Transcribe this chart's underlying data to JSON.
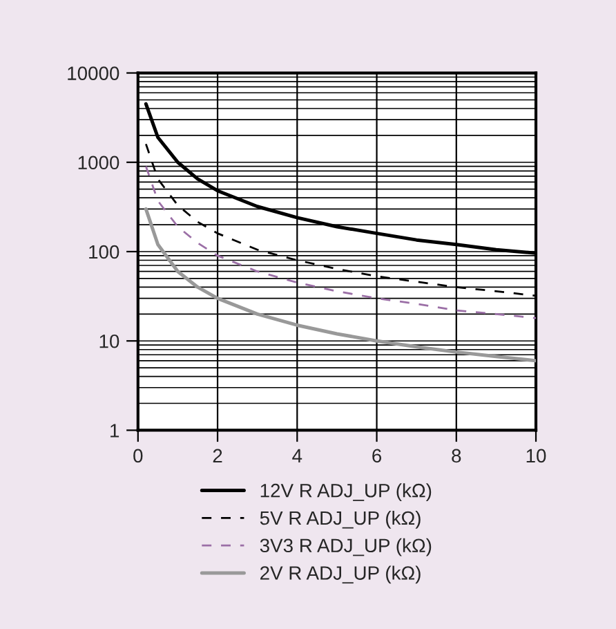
{
  "chart_data": {
    "type": "line",
    "log": "y",
    "xlim": [
      0,
      10
    ],
    "ylim": [
      1,
      10000
    ],
    "xticks": [
      0,
      2,
      4,
      6,
      8,
      10
    ],
    "yticks": [
      1,
      10,
      100,
      1000,
      10000
    ],
    "grid": true,
    "legend": "bottom",
    "x": [
      0.2,
      0.5,
      1,
      1.5,
      2,
      3,
      4,
      5,
      6,
      7,
      8,
      9,
      10
    ],
    "series": [
      {
        "name": "12V R ADJ_UP (kΩ)",
        "color": "#000000",
        "line_style": "solid",
        "values": [
          4500,
          1900,
          1000,
          650,
          480,
          320,
          240,
          190,
          160,
          135,
          120,
          105,
          96
        ]
      },
      {
        "name": "5V R ADJ_UP (kΩ)",
        "color": "#000000",
        "line_style": "dashed",
        "values": [
          1600,
          650,
          330,
          215,
          160,
          105,
          80,
          64,
          53,
          46,
          40,
          36,
          32
        ]
      },
      {
        "name": "3V3 R ADJ_UP (kΩ)",
        "color": "#9b6fa6",
        "line_style": "dashed",
        "values": [
          900,
          370,
          190,
          125,
          90,
          60,
          45,
          36,
          30,
          26,
          22,
          20,
          18
        ]
      },
      {
        "name": "2V R ADJ_UP (kΩ)",
        "color": "#999999",
        "line_style": "solid",
        "values": [
          300,
          120,
          60,
          40,
          30,
          20,
          15,
          12,
          10,
          8.6,
          7.5,
          6.7,
          6
        ]
      }
    ]
  }
}
